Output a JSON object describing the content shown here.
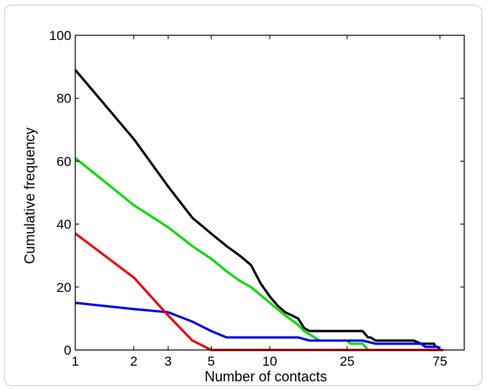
{
  "chart_data": {
    "type": "line",
    "title": "",
    "xlabel": "Number of contacts",
    "ylabel": "Cumulative frequency",
    "x_scale": "log",
    "xlim": [
      1,
      100
    ],
    "ylim": [
      0,
      100
    ],
    "x_ticks": [
      1,
      2,
      3,
      5,
      10,
      25,
      75
    ],
    "x_tick_labels": [
      "1",
      "2",
      "3",
      "5",
      "10",
      "25",
      "75"
    ],
    "y_ticks": [
      0,
      20,
      40,
      60,
      80,
      100
    ],
    "y_tick_labels": [
      "0",
      "20",
      "40",
      "60",
      "80",
      "100"
    ],
    "grid": false,
    "legend": "none",
    "series": [
      {
        "color": "#000000",
        "points": [
          [
            1,
            89
          ],
          [
            2,
            67
          ],
          [
            3,
            52
          ],
          [
            4,
            42
          ],
          [
            5,
            37
          ],
          [
            6,
            33
          ],
          [
            7,
            30
          ],
          [
            8,
            27
          ],
          [
            9,
            21
          ],
          [
            10,
            17
          ],
          [
            11,
            14
          ],
          [
            12,
            12
          ],
          [
            14,
            10
          ],
          [
            15,
            7
          ],
          [
            16,
            6
          ],
          [
            20,
            6
          ],
          [
            25,
            6
          ],
          [
            30,
            6
          ],
          [
            31,
            5
          ],
          [
            32,
            4
          ],
          [
            33,
            4
          ],
          [
            35,
            3
          ],
          [
            50,
            3
          ],
          [
            55,
            3
          ],
          [
            60,
            2
          ],
          [
            65,
            2
          ],
          [
            70,
            2
          ],
          [
            71,
            1
          ],
          [
            73,
            1
          ],
          [
            75,
            0
          ],
          [
            78,
            0
          ]
        ]
      },
      {
        "color": "#00dd00",
        "points": [
          [
            1,
            61
          ],
          [
            2,
            46
          ],
          [
            3,
            39
          ],
          [
            4,
            33
          ],
          [
            5,
            29
          ],
          [
            6,
            25
          ],
          [
            7,
            22
          ],
          [
            8,
            20
          ],
          [
            10,
            15
          ],
          [
            12,
            11
          ],
          [
            14,
            8
          ],
          [
            15,
            6
          ],
          [
            17,
            4
          ],
          [
            18,
            3
          ],
          [
            25,
            3
          ],
          [
            26,
            2
          ],
          [
            30,
            2
          ],
          [
            31,
            1
          ],
          [
            32,
            0
          ],
          [
            40,
            0
          ],
          [
            60,
            0
          ],
          [
            75,
            0
          ],
          [
            78,
            0
          ]
        ]
      },
      {
        "color": "#0000ee",
        "points": [
          [
            1,
            15
          ],
          [
            2,
            13
          ],
          [
            3,
            12
          ],
          [
            4,
            9
          ],
          [
            5,
            6
          ],
          [
            6,
            4
          ],
          [
            10,
            4
          ],
          [
            14,
            4
          ],
          [
            16,
            3
          ],
          [
            30,
            3
          ],
          [
            35,
            2
          ],
          [
            60,
            2
          ],
          [
            63,
            1
          ],
          [
            73,
            1
          ],
          [
            75,
            0
          ],
          [
            78,
            0
          ]
        ]
      },
      {
        "color": "#ee0000",
        "points": [
          [
            1,
            37
          ],
          [
            2,
            23
          ],
          [
            3,
            11
          ],
          [
            4,
            3
          ],
          [
            5,
            0
          ],
          [
            10,
            0
          ],
          [
            25,
            0
          ],
          [
            40,
            0
          ],
          [
            60,
            0
          ],
          [
            78,
            0
          ]
        ]
      }
    ]
  }
}
